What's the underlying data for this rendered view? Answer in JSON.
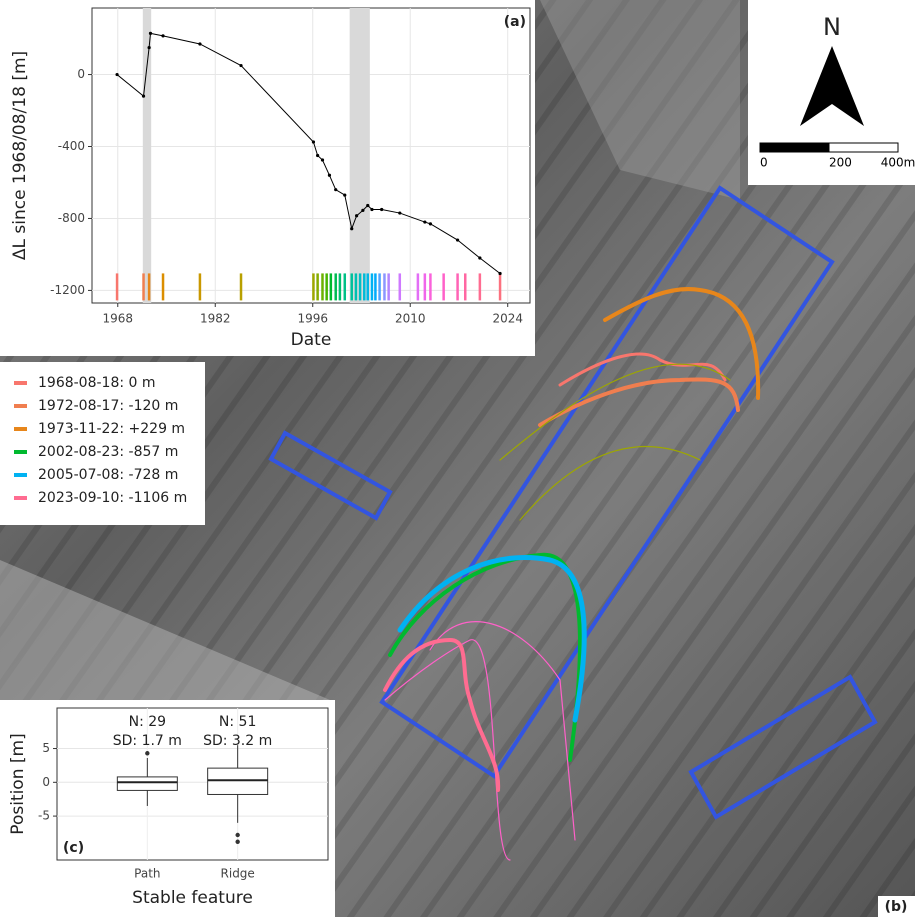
{
  "chart_data": [
    {
      "type": "line",
      "panel_label": "(a)",
      "x_label": "Date",
      "y_label": "ΔL since 1968/08/18 [m]",
      "xlim": [
        1964.3,
        2027.2
      ],
      "xticks": [
        1968,
        1982,
        1996,
        2010,
        2024
      ],
      "ylim": [
        -1270,
        370
      ],
      "yticks": [
        -1200,
        -800,
        -400,
        0
      ],
      "grid": true,
      "shaded_ranges": [
        [
          1971.6,
          1972.8
        ],
        [
          2001.3,
          2004.2
        ]
      ],
      "series": [
        {
          "color": "#000000",
          "x": [
            1967.9,
            1971.7,
            1972.5,
            1972.7,
            1974.5,
            1979.8,
            1985.7,
            1996.1,
            1996.7,
            1997.4,
            1998.4,
            1999.3,
            2000.6,
            2001.6,
            2002.3,
            2003.2,
            2003.9,
            2004.5,
            2005.9,
            2008.5,
            2012.1,
            2012.9,
            2016.8,
            2020.0,
            2022.9
          ],
          "values": [
            0,
            -120,
            150,
            229,
            215,
            170,
            50,
            -375,
            -450,
            -475,
            -560,
            -640,
            -670,
            -857,
            -785,
            -755,
            -728,
            -750,
            -750,
            -770,
            -820,
            -830,
            -920,
            -1020,
            -1106
          ]
        }
      ],
      "rug": {
        "x": [
          1967.9,
          1971.7,
          1972.5,
          1974.5,
          1979.8,
          1985.7,
          1996.1,
          1996.7,
          1997.4,
          1998.0,
          1998.6,
          1999.3,
          1999.9,
          2000.6,
          2001.6,
          2002.2,
          2002.8,
          2003.4,
          2003.9,
          2004.5,
          2005.0,
          2005.6,
          2006.3,
          2006.9,
          2008.5,
          2011.1,
          2012.1,
          2012.9,
          2014.8,
          2016.8,
          2017.9,
          2020.0,
          2022.9
        ],
        "colors": [
          "#f8766d",
          "#f07e4f",
          "#e7861b",
          "#db8e00",
          "#c99800",
          "#b8a000",
          "#9da700",
          "#86ac00",
          "#6bb100",
          "#48b500",
          "#00b92f",
          "#00bc52",
          "#00be6e",
          "#00c086",
          "#00c19c",
          "#00c0b1",
          "#00bec4",
          "#00bbd6",
          "#00b7e5",
          "#00b2f2",
          "#00abfc",
          "#4ea3ff",
          "#8b96ff",
          "#b385ff",
          "#ce79ff",
          "#e36ef6",
          "#f066ea",
          "#fa62db",
          "#ff61c9",
          "#ff63b5",
          "#ff67a2",
          "#ff6c91",
          "#fc717f"
        ]
      }
    },
    {
      "type": "box",
      "panel_label": "(c)",
      "x_label": "Stable feature",
      "y_label": "Position [m]",
      "categories": [
        "Path",
        "Ridge"
      ],
      "whisker_low": [
        -3.5,
        -6.0
      ],
      "q1": [
        -1.2,
        -1.8
      ],
      "median": [
        0,
        0.3
      ],
      "q3": [
        0.8,
        2.1
      ],
      "whisker_high": [
        3.6,
        5.5
      ],
      "outliers": [
        [
          4.3
        ],
        [
          -7.8,
          -8.8
        ]
      ],
      "annotations": [
        [
          "N: 29",
          "SD: 1.7 m"
        ],
        [
          "N: 51",
          "SD: 3.2 m"
        ]
      ],
      "ylim": [
        -11.5,
        11
      ],
      "yticks": [
        -5,
        0,
        5
      ],
      "grid": true
    }
  ],
  "legend": {
    "entries": [
      {
        "label": "1968-08-18: 0 m",
        "color": "#f8766d"
      },
      {
        "label": "1972-08-17: -120 m",
        "color": "#f07e4f"
      },
      {
        "label": "1973-11-22: +229 m",
        "color": "#e7861b"
      },
      {
        "label": "2002-08-23: -857 m",
        "color": "#00b92f"
      },
      {
        "label": "2005-07-08: -728 m",
        "color": "#00b2f2"
      },
      {
        "label": "2023-09-10: -1106 m",
        "color": "#ff6c91"
      }
    ]
  },
  "map": {
    "panel_label": "(b)",
    "north_label": "N",
    "scale_ticks": [
      {
        "value": 0,
        "label": "0"
      },
      {
        "value": 200,
        "label": "200"
      },
      {
        "value": 400,
        "label": "400m"
      }
    ]
  }
}
